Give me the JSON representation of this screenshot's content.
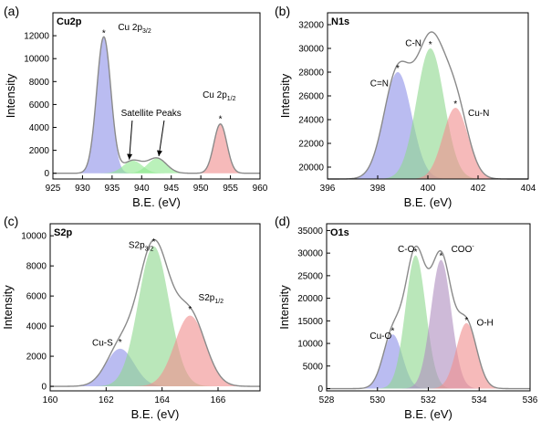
{
  "chart_data": [
    {
      "id": "a",
      "type": "line",
      "panel_label": "(a)",
      "title": "Cu2p",
      "xlabel": "B.E. (eV)",
      "ylabel": "Intensity",
      "xlim": [
        925,
        960
      ],
      "ylim": [
        -500,
        14000
      ],
      "xticks": [
        925,
        930,
        935,
        940,
        945,
        950,
        955,
        960
      ],
      "yticks": [
        0,
        2000,
        4000,
        6000,
        8000,
        10000,
        12000
      ],
      "yticklabels": [
        "0",
        "2000",
        "4000",
        "6000",
        "8000",
        "10000",
        "12000"
      ],
      "peaks": [
        {
          "name": "Cu 2p3/2",
          "center": 933.6,
          "height": 11900,
          "width": 1.2,
          "color": "#8f93e8"
        },
        {
          "name": "satellite 1",
          "center": 938.5,
          "height": 1100,
          "width": 1.6,
          "color": "#8fe88f"
        },
        {
          "name": "satellite 2",
          "center": 942.6,
          "height": 1300,
          "width": 1.6,
          "color": "#8fe88f"
        },
        {
          "name": "Cu 2p1/2",
          "center": 953.3,
          "height": 4300,
          "width": 1.1,
          "color": "#f08f8f"
        }
      ],
      "annotations": [
        {
          "text": "Cu 2p",
          "sub": "3/2",
          "x": 936,
          "y": 12500,
          "anchor": "start"
        },
        {
          "text": "Satellite Peaks",
          "x": 936.5,
          "y": 5000,
          "anchor": "start"
        },
        {
          "text": "Cu 2p",
          "sub": "1/2",
          "x": 950.3,
          "y": 6600,
          "anchor": "start"
        }
      ],
      "arrows": [
        {
          "from": [
            938.4,
            4600
          ],
          "to": [
            937.9,
            1200
          ]
        },
        {
          "from": [
            943.8,
            4600
          ],
          "to": [
            942.9,
            1500
          ]
        }
      ],
      "stars": [
        [
          933.6,
          12200
        ],
        [
          953.3,
          4700
        ]
      ]
    },
    {
      "id": "b",
      "type": "line",
      "panel_label": "(b)",
      "title": "N1s",
      "xlabel": "B.E. (eV)",
      "ylabel": "Intensity",
      "xlim": [
        396,
        404
      ],
      "ylim": [
        19000,
        33000
      ],
      "xticks": [
        396,
        398,
        400,
        402,
        404
      ],
      "yticks": [
        20000,
        22000,
        24000,
        26000,
        28000,
        30000,
        32000
      ],
      "yticklabels": [
        "20000",
        "22000",
        "24000",
        "26000",
        "28000",
        "30000",
        "32000"
      ],
      "baseline": 19000,
      "peaks": [
        {
          "name": "C=N",
          "center": 398.8,
          "height": 9000,
          "width": 0.55,
          "color": "#8f93e8"
        },
        {
          "name": "C-N",
          "center": 400.1,
          "height": 11000,
          "width": 0.55,
          "color": "#8fd98f"
        },
        {
          "name": "Cu-N",
          "center": 401.1,
          "height": 6000,
          "width": 0.5,
          "color": "#f08f8f"
        }
      ],
      "annotations": [
        {
          "text": "C=N",
          "x": 397.7,
          "y": 26800,
          "anchor": "start"
        },
        {
          "text": "C-N",
          "x": 399.1,
          "y": 30200,
          "anchor": "start"
        },
        {
          "text": "Cu-N",
          "x": 401.6,
          "y": 24300,
          "anchor": "start"
        }
      ],
      "stars": [
        [
          398.8,
          28300
        ],
        [
          400.1,
          30300
        ],
        [
          401.1,
          25300
        ]
      ]
    },
    {
      "id": "c",
      "type": "line",
      "panel_label": "(c)",
      "title": "S2p",
      "xlabel": "B.E. (eV)",
      "ylabel": "Intensity",
      "xlim": [
        160,
        167.5
      ],
      "ylim": [
        -300,
        10800
      ],
      "xticks": [
        160,
        162,
        164,
        166
      ],
      "yticks": [
        0,
        2000,
        4000,
        6000,
        8000,
        10000
      ],
      "yticklabels": [
        "0",
        "2000",
        "4000",
        "6000",
        "8000",
        "10000"
      ],
      "peaks": [
        {
          "name": "Cu-S",
          "center": 162.5,
          "height": 2500,
          "width": 0.5,
          "color": "#8f93e8"
        },
        {
          "name": "S2p3/2",
          "center": 163.7,
          "height": 9300,
          "width": 0.55,
          "color": "#8fd98f"
        },
        {
          "name": "S2p1/2",
          "center": 165.0,
          "height": 4700,
          "width": 0.55,
          "color": "#f08f8f"
        }
      ],
      "annotations": [
        {
          "text": "Cu-S",
          "x": 161.5,
          "y": 2700,
          "anchor": "start"
        },
        {
          "text": "S2p",
          "sub": "3/2",
          "x": 162.8,
          "y": 9200,
          "anchor": "start"
        },
        {
          "text": "S2p",
          "sub": "1/2",
          "x": 165.3,
          "y": 5700,
          "anchor": "start"
        }
      ],
      "stars": [
        [
          162.5,
          2900
        ],
        [
          163.7,
          9600
        ],
        [
          165.0,
          5100
        ]
      ]
    },
    {
      "id": "d",
      "type": "line",
      "panel_label": "(d)",
      "title": "O1s",
      "xlabel": "B.E. (eV)",
      "ylabel": "Intensity",
      "xlim": [
        528,
        536
      ],
      "ylim": [
        -500,
        36500
      ],
      "xticks": [
        528,
        530,
        532,
        534,
        536
      ],
      "yticks": [
        0,
        5000,
        10000,
        15000,
        20000,
        25000,
        30000,
        35000
      ],
      "yticklabels": [
        "0",
        "5000",
        "10000",
        "15000",
        "20000",
        "25000",
        "30000",
        "35000"
      ],
      "peaks": [
        {
          "name": "Cu-O",
          "center": 530.6,
          "height": 12000,
          "width": 0.38,
          "color": "#8f93e8"
        },
        {
          "name": "C-O",
          "center": 531.5,
          "height": 29500,
          "width": 0.4,
          "color": "#8fd98f"
        },
        {
          "name": "COO-",
          "center": 532.5,
          "height": 28500,
          "width": 0.4,
          "color": "#b08fc0"
        },
        {
          "name": "O-H",
          "center": 533.5,
          "height": 14500,
          "width": 0.4,
          "color": "#f08f8f"
        }
      ],
      "annotations": [
        {
          "text": "Cu-O",
          "x": 529.7,
          "y": 11000,
          "anchor": "start"
        },
        {
          "text": "C-O",
          "x": 530.8,
          "y": 30200,
          "anchor": "start"
        },
        {
          "text": "COO",
          "sup": "-",
          "x": 532.9,
          "y": 30200,
          "anchor": "start"
        },
        {
          "text": "O-H",
          "x": 533.9,
          "y": 14000,
          "anchor": "start"
        }
      ],
      "stars": [
        [
          530.6,
          12700
        ],
        [
          531.5,
          30200
        ],
        [
          532.5,
          29300
        ],
        [
          533.5,
          15100
        ]
      ]
    }
  ]
}
